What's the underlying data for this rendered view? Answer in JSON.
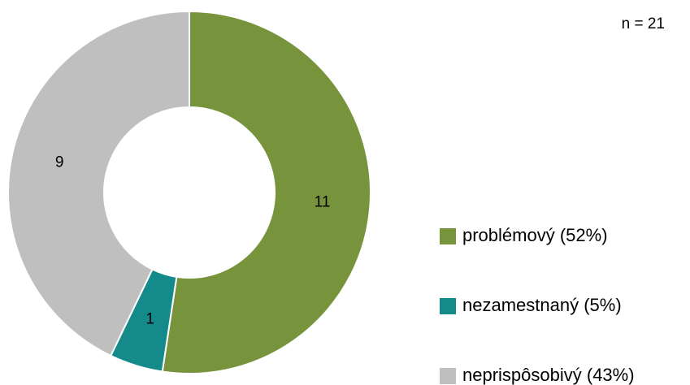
{
  "chart_data": {
    "type": "pie",
    "donut": true,
    "subtitle": "n = 21",
    "categories": [
      "problémový (52%)",
      "nezamestnaný (5%)",
      "neprispôsobivý (43%)"
    ],
    "values": [
      11,
      1,
      9
    ],
    "colors": [
      "#77933c",
      "#148a8a",
      "#bfbfbf"
    ],
    "legend": "right"
  }
}
